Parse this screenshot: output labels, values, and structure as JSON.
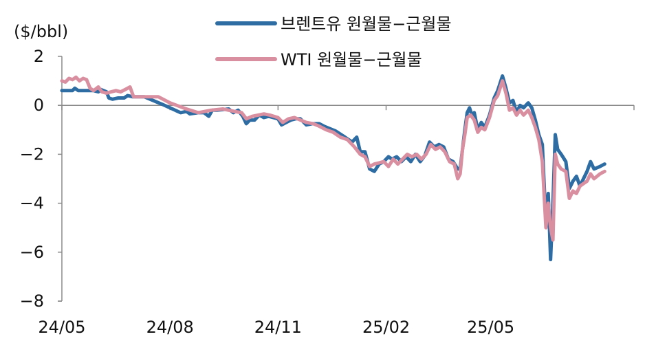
{
  "chart_data": {
    "type": "line",
    "unit_label": "($/bbl)",
    "ylim": [
      -8,
      2
    ],
    "yticks": [
      2,
      0,
      -2,
      -4,
      -6,
      -8
    ],
    "ytick_labels": [
      "2",
      "0",
      "−2",
      "−4",
      "−6",
      "−8"
    ],
    "xlim": [
      "2024-05-01",
      "2025-08-31"
    ],
    "xticks": [
      "2024-05-01",
      "2024-08-01",
      "2024-11-01",
      "2025-02-01",
      "2025-05-01"
    ],
    "xtick_labels": [
      "24/05",
      "24/08",
      "24/11",
      "25/02",
      "25/05"
    ],
    "grid": false,
    "legend_position": "top",
    "series": [
      {
        "name": "브렌트유 원월물−근월물",
        "color": "#2e6ca4",
        "points": [
          [
            "2024-05-01",
            0.6
          ],
          [
            "2024-05-10",
            0.6
          ],
          [
            "2024-05-12",
            0.7
          ],
          [
            "2024-05-15",
            0.6
          ],
          [
            "2024-05-25",
            0.6
          ],
          [
            "2024-05-28",
            0.6
          ],
          [
            "2024-06-01",
            0.55
          ],
          [
            "2024-06-03",
            0.65
          ],
          [
            "2024-06-08",
            0.55
          ],
          [
            "2024-06-10",
            0.3
          ],
          [
            "2024-06-13",
            0.25
          ],
          [
            "2024-06-18",
            0.3
          ],
          [
            "2024-06-23",
            0.3
          ],
          [
            "2024-06-26",
            0.4
          ],
          [
            "2024-06-30",
            0.35
          ],
          [
            "2024-07-10",
            0.35
          ],
          [
            "2024-07-25",
            0.05
          ],
          [
            "2024-08-10",
            -0.3
          ],
          [
            "2024-08-15",
            -0.25
          ],
          [
            "2024-08-18",
            -0.35
          ],
          [
            "2024-08-25",
            -0.3
          ],
          [
            "2024-08-30",
            -0.3
          ],
          [
            "2024-09-03",
            -0.45
          ],
          [
            "2024-09-06",
            -0.2
          ],
          [
            "2024-09-10",
            -0.2
          ],
          [
            "2024-09-20",
            -0.15
          ],
          [
            "2024-09-24",
            -0.3
          ],
          [
            "2024-09-28",
            -0.2
          ],
          [
            "2024-10-02",
            -0.45
          ],
          [
            "2024-10-05",
            -0.75
          ],
          [
            "2024-10-08",
            -0.6
          ],
          [
            "2024-10-12",
            -0.6
          ],
          [
            "2024-10-16",
            -0.4
          ],
          [
            "2024-10-20",
            -0.5
          ],
          [
            "2024-10-24",
            -0.45
          ],
          [
            "2024-11-01",
            -0.55
          ],
          [
            "2024-11-04",
            -0.8
          ],
          [
            "2024-11-08",
            -0.7
          ],
          [
            "2024-11-12",
            -0.6
          ],
          [
            "2024-11-16",
            -0.55
          ],
          [
            "2024-11-20",
            -0.55
          ],
          [
            "2024-11-25",
            -0.8
          ],
          [
            "2024-11-30",
            -0.75
          ],
          [
            "2024-12-06",
            -0.75
          ],
          [
            "2024-12-10",
            -0.85
          ],
          [
            "2024-12-15",
            -0.95
          ],
          [
            "2024-12-20",
            -1.05
          ],
          [
            "2024-12-28",
            -1.3
          ],
          [
            "2025-01-03",
            -1.5
          ],
          [
            "2025-01-07",
            -1.3
          ],
          [
            "2025-01-10",
            -1.9
          ],
          [
            "2025-01-14",
            -1.9
          ],
          [
            "2025-01-18",
            -2.6
          ],
          [
            "2025-01-22",
            -2.7
          ],
          [
            "2025-01-26",
            -2.4
          ],
          [
            "2025-01-30",
            -2.3
          ],
          [
            "2025-02-03",
            -2.1
          ],
          [
            "2025-02-06",
            -2.2
          ],
          [
            "2025-02-10",
            -2.1
          ],
          [
            "2025-02-14",
            -2.3
          ],
          [
            "2025-02-18",
            -2.1
          ],
          [
            "2025-02-22",
            -2.3
          ],
          [
            "2025-02-26",
            -2.0
          ],
          [
            "2025-03-02",
            -2.3
          ],
          [
            "2025-03-06",
            -2.05
          ],
          [
            "2025-03-10",
            -1.5
          ],
          [
            "2025-03-14",
            -1.7
          ],
          [
            "2025-03-18",
            -1.6
          ],
          [
            "2025-03-22",
            -1.7
          ],
          [
            "2025-03-26",
            -2.2
          ],
          [
            "2025-03-30",
            -2.3
          ],
          [
            "2025-04-03",
            -2.6
          ],
          [
            "2025-04-05",
            -2.6
          ],
          [
            "2025-04-07",
            -1.8
          ],
          [
            "2025-04-09",
            -1.0
          ],
          [
            "2025-04-11",
            -0.3
          ],
          [
            "2025-04-13",
            -0.1
          ],
          [
            "2025-04-15",
            -0.4
          ],
          [
            "2025-04-17",
            -0.3
          ],
          [
            "2025-04-20",
            -1.0
          ],
          [
            "2025-04-23",
            -0.7
          ],
          [
            "2025-04-26",
            -0.9
          ],
          [
            "2025-04-30",
            -0.4
          ],
          [
            "2025-05-04",
            0.3
          ],
          [
            "2025-05-07",
            0.6
          ],
          [
            "2025-05-11",
            1.2
          ],
          [
            "2025-05-14",
            0.7
          ],
          [
            "2025-05-17",
            0.1
          ],
          [
            "2025-05-20",
            0.2
          ],
          [
            "2025-05-23",
            -0.3
          ],
          [
            "2025-05-26",
            0.0
          ],
          [
            "2025-05-29",
            -0.1
          ],
          [
            "2025-06-02",
            0.1
          ],
          [
            "2025-06-05",
            -0.1
          ],
          [
            "2025-06-08",
            -0.6
          ],
          [
            "2025-06-11",
            -1.2
          ],
          [
            "2025-06-14",
            -1.6
          ],
          [
            "2025-06-17",
            -4.8
          ],
          [
            "2025-06-19",
            -3.6
          ],
          [
            "2025-06-21",
            -6.3
          ],
          [
            "2025-06-23",
            -4.0
          ],
          [
            "2025-06-25",
            -1.2
          ],
          [
            "2025-06-27",
            -1.8
          ],
          [
            "2025-06-30",
            -2.0
          ],
          [
            "2025-07-04",
            -2.3
          ],
          [
            "2025-07-07",
            -3.4
          ],
          [
            "2025-07-10",
            -3.1
          ],
          [
            "2025-07-13",
            -2.9
          ],
          [
            "2025-07-16",
            -3.3
          ],
          [
            "2025-07-19",
            -3.0
          ],
          [
            "2025-07-22",
            -2.7
          ],
          [
            "2025-07-25",
            -2.3
          ],
          [
            "2025-07-28",
            -2.6
          ],
          [
            "2025-08-02",
            -2.5
          ],
          [
            "2025-08-06",
            -2.4
          ]
        ]
      },
      {
        "name": "WTI 원월물−근월물",
        "color": "#d98fa0",
        "points": [
          [
            "2024-05-01",
            1.0
          ],
          [
            "2024-05-04",
            0.95
          ],
          [
            "2024-05-07",
            1.1
          ],
          [
            "2024-05-10",
            1.05
          ],
          [
            "2024-05-13",
            1.15
          ],
          [
            "2024-05-16",
            1.0
          ],
          [
            "2024-05-19",
            1.1
          ],
          [
            "2024-05-22",
            1.05
          ],
          [
            "2024-05-25",
            0.7
          ],
          [
            "2024-05-28",
            0.6
          ],
          [
            "2024-06-01",
            0.75
          ],
          [
            "2024-06-04",
            0.55
          ],
          [
            "2024-06-08",
            0.5
          ],
          [
            "2024-06-12",
            0.55
          ],
          [
            "2024-06-16",
            0.6
          ],
          [
            "2024-06-20",
            0.55
          ],
          [
            "2024-06-24",
            0.65
          ],
          [
            "2024-06-28",
            0.75
          ],
          [
            "2024-07-01",
            0.35
          ],
          [
            "2024-07-10",
            0.35
          ],
          [
            "2024-07-22",
            0.35
          ],
          [
            "2024-08-01",
            0.1
          ],
          [
            "2024-08-15",
            -0.15
          ],
          [
            "2024-08-25",
            -0.3
          ],
          [
            "2024-09-05",
            -0.2
          ],
          [
            "2024-09-15",
            -0.15
          ],
          [
            "2024-09-25",
            -0.25
          ],
          [
            "2024-10-01",
            -0.3
          ],
          [
            "2024-10-05",
            -0.55
          ],
          [
            "2024-10-10",
            -0.45
          ],
          [
            "2024-10-15",
            -0.4
          ],
          [
            "2024-10-20",
            -0.35
          ],
          [
            "2024-10-25",
            -0.4
          ],
          [
            "2024-11-01",
            -0.5
          ],
          [
            "2024-11-05",
            -0.7
          ],
          [
            "2024-11-10",
            -0.55
          ],
          [
            "2024-11-15",
            -0.5
          ],
          [
            "2024-11-20",
            -0.6
          ],
          [
            "2024-11-25",
            -0.7
          ],
          [
            "2024-12-01",
            -0.75
          ],
          [
            "2024-12-06",
            -0.85
          ],
          [
            "2024-12-12",
            -1.0
          ],
          [
            "2024-12-18",
            -1.1
          ],
          [
            "2024-12-24",
            -1.3
          ],
          [
            "2024-12-30",
            -1.4
          ],
          [
            "2025-01-05",
            -1.7
          ],
          [
            "2025-01-10",
            -2.0
          ],
          [
            "2025-01-14",
            -2.1
          ],
          [
            "2025-01-18",
            -2.5
          ],
          [
            "2025-01-22",
            -2.4
          ],
          [
            "2025-01-26",
            -2.35
          ],
          [
            "2025-01-30",
            -2.3
          ],
          [
            "2025-02-03",
            -2.5
          ],
          [
            "2025-02-07",
            -2.2
          ],
          [
            "2025-02-11",
            -2.4
          ],
          [
            "2025-02-15",
            -2.2
          ],
          [
            "2025-02-19",
            -2.0
          ],
          [
            "2025-02-23",
            -2.1
          ],
          [
            "2025-02-27",
            -2.0
          ],
          [
            "2025-03-03",
            -2.2
          ],
          [
            "2025-03-07",
            -2.0
          ],
          [
            "2025-03-11",
            -1.6
          ],
          [
            "2025-03-15",
            -1.8
          ],
          [
            "2025-03-19",
            -1.7
          ],
          [
            "2025-03-23",
            -1.9
          ],
          [
            "2025-03-27",
            -2.3
          ],
          [
            "2025-03-31",
            -2.4
          ],
          [
            "2025-04-03",
            -3.0
          ],
          [
            "2025-04-05",
            -2.8
          ],
          [
            "2025-04-07",
            -1.8
          ],
          [
            "2025-04-09",
            -1.2
          ],
          [
            "2025-04-11",
            -0.5
          ],
          [
            "2025-04-14",
            -0.4
          ],
          [
            "2025-04-17",
            -0.6
          ],
          [
            "2025-04-20",
            -1.1
          ],
          [
            "2025-04-23",
            -0.9
          ],
          [
            "2025-04-26",
            -1.0
          ],
          [
            "2025-04-30",
            -0.5
          ],
          [
            "2025-05-04",
            0.2
          ],
          [
            "2025-05-07",
            0.4
          ],
          [
            "2025-05-11",
            1.0
          ],
          [
            "2025-05-14",
            0.5
          ],
          [
            "2025-05-17",
            -0.2
          ],
          [
            "2025-05-20",
            -0.1
          ],
          [
            "2025-05-23",
            -0.4
          ],
          [
            "2025-05-26",
            -0.2
          ],
          [
            "2025-05-29",
            -0.4
          ],
          [
            "2025-06-02",
            -0.2
          ],
          [
            "2025-06-05",
            -0.5
          ],
          [
            "2025-06-08",
            -0.9
          ],
          [
            "2025-06-11",
            -1.4
          ],
          [
            "2025-06-14",
            -2.3
          ],
          [
            "2025-06-17",
            -5.0
          ],
          [
            "2025-06-19",
            -4.0
          ],
          [
            "2025-06-21",
            -5.0
          ],
          [
            "2025-06-23",
            -5.5
          ],
          [
            "2025-06-25",
            -2.0
          ],
          [
            "2025-06-27",
            -2.4
          ],
          [
            "2025-06-30",
            -2.6
          ],
          [
            "2025-07-04",
            -2.7
          ],
          [
            "2025-07-07",
            -3.8
          ],
          [
            "2025-07-10",
            -3.5
          ],
          [
            "2025-07-13",
            -3.6
          ],
          [
            "2025-07-16",
            -3.3
          ],
          [
            "2025-07-19",
            -3.2
          ],
          [
            "2025-07-22",
            -3.1
          ],
          [
            "2025-07-25",
            -2.8
          ],
          [
            "2025-07-28",
            -3.0
          ],
          [
            "2025-08-02",
            -2.8
          ],
          [
            "2025-08-06",
            -2.7
          ]
        ]
      }
    ]
  }
}
